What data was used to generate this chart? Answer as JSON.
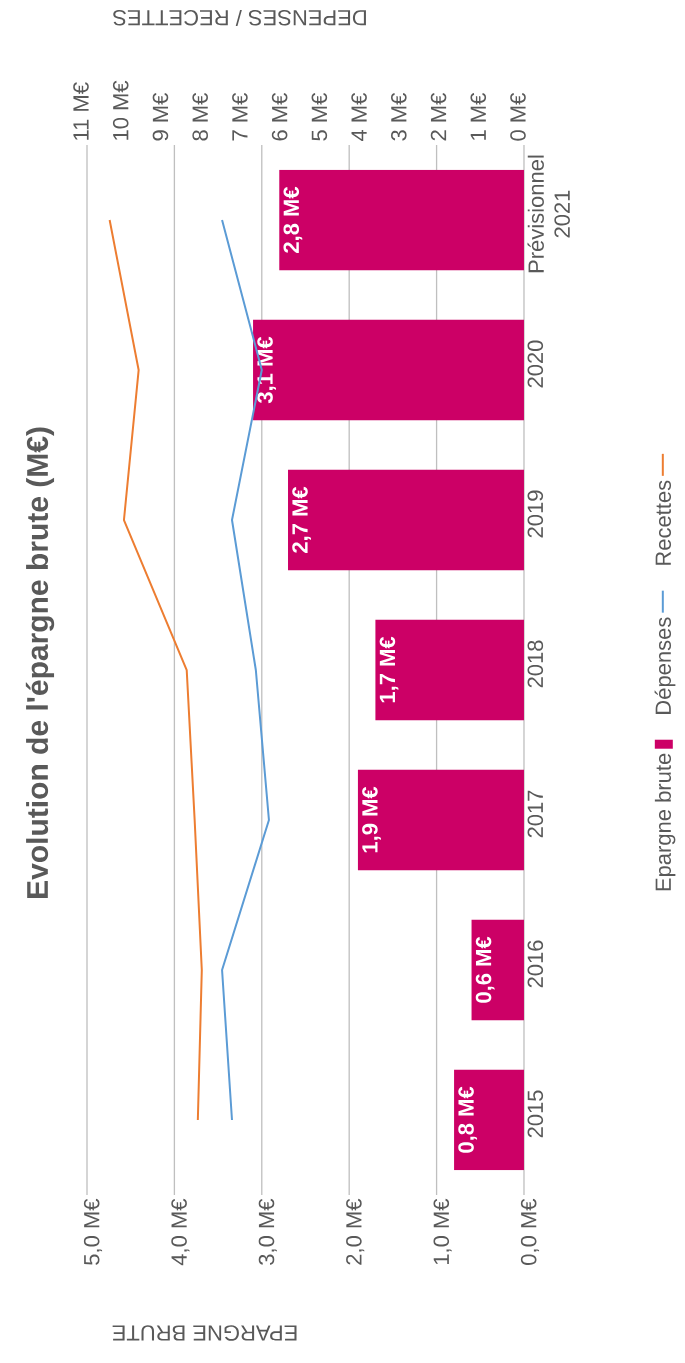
{
  "chart_data": {
    "type": "bar",
    "orientation": "horizontal",
    "title": "Evolution de l'épargne brute (M€)",
    "categories": [
      "Prévisionnel 2021",
      "2020",
      "2019",
      "2018",
      "2017",
      "2016",
      "2015"
    ],
    "series": [
      {
        "name": "Epargne brute",
        "color": "#cc0066",
        "values": [
          2.8,
          3.1,
          2.7,
          1.7,
          1.9,
          0.6,
          0.8
        ],
        "value_labels": [
          "2,8 M€",
          "3,1 M€",
          "2,7 M€",
          "1,7 M€",
          "1,9 M€",
          "0,6 M€",
          "0,8 M€"
        ]
      },
      {
        "name": "Dépenses",
        "type": "line",
        "axis": "x2",
        "color": "#5b9bd5",
        "values": [
          7.6,
          6.6,
          7.35,
          6.75,
          6.42,
          7.6,
          7.35
        ]
      },
      {
        "name": "Recettes",
        "type": "line",
        "axis": "x2",
        "color": "#ed7d31",
        "values": [
          10.43,
          9.7,
          10.07,
          8.49,
          8.29,
          8.11,
          8.21
        ]
      }
    ],
    "xlabel": "EPARGNE BRUTE",
    "x2label": "DEPENSES / RECETTES",
    "xlim": [
      5,
      0
    ],
    "xticks": [
      {
        "value": 0,
        "label": "0,0 M€"
      },
      {
        "value": 1,
        "label": "1,0 M€"
      },
      {
        "value": 2,
        "label": "2,0 M€"
      },
      {
        "value": 3,
        "label": "3,0 M€"
      },
      {
        "value": 4,
        "label": "4,0 M€"
      },
      {
        "value": 5,
        "label": "5,0 M€"
      }
    ],
    "x2lim": [
      11,
      0
    ],
    "x2ticks": [
      {
        "value": 0,
        "label": "0 M€"
      },
      {
        "value": 1,
        "label": "1 M€"
      },
      {
        "value": 2,
        "label": "2 M€"
      },
      {
        "value": 3,
        "label": "3 M€"
      },
      {
        "value": 4,
        "label": "4 M€"
      },
      {
        "value": 5,
        "label": "5 M€"
      },
      {
        "value": 6,
        "label": "6 M€"
      },
      {
        "value": 7,
        "label": "7 M€"
      },
      {
        "value": 8,
        "label": "8 M€"
      },
      {
        "value": 9,
        "label": "9 M€"
      },
      {
        "value": 10,
        "label": "10 M€"
      },
      {
        "value": 11,
        "label": "11 M€"
      }
    ],
    "grid": "x",
    "legend": "right",
    "marker": "none",
    "line_style": "solid"
  }
}
